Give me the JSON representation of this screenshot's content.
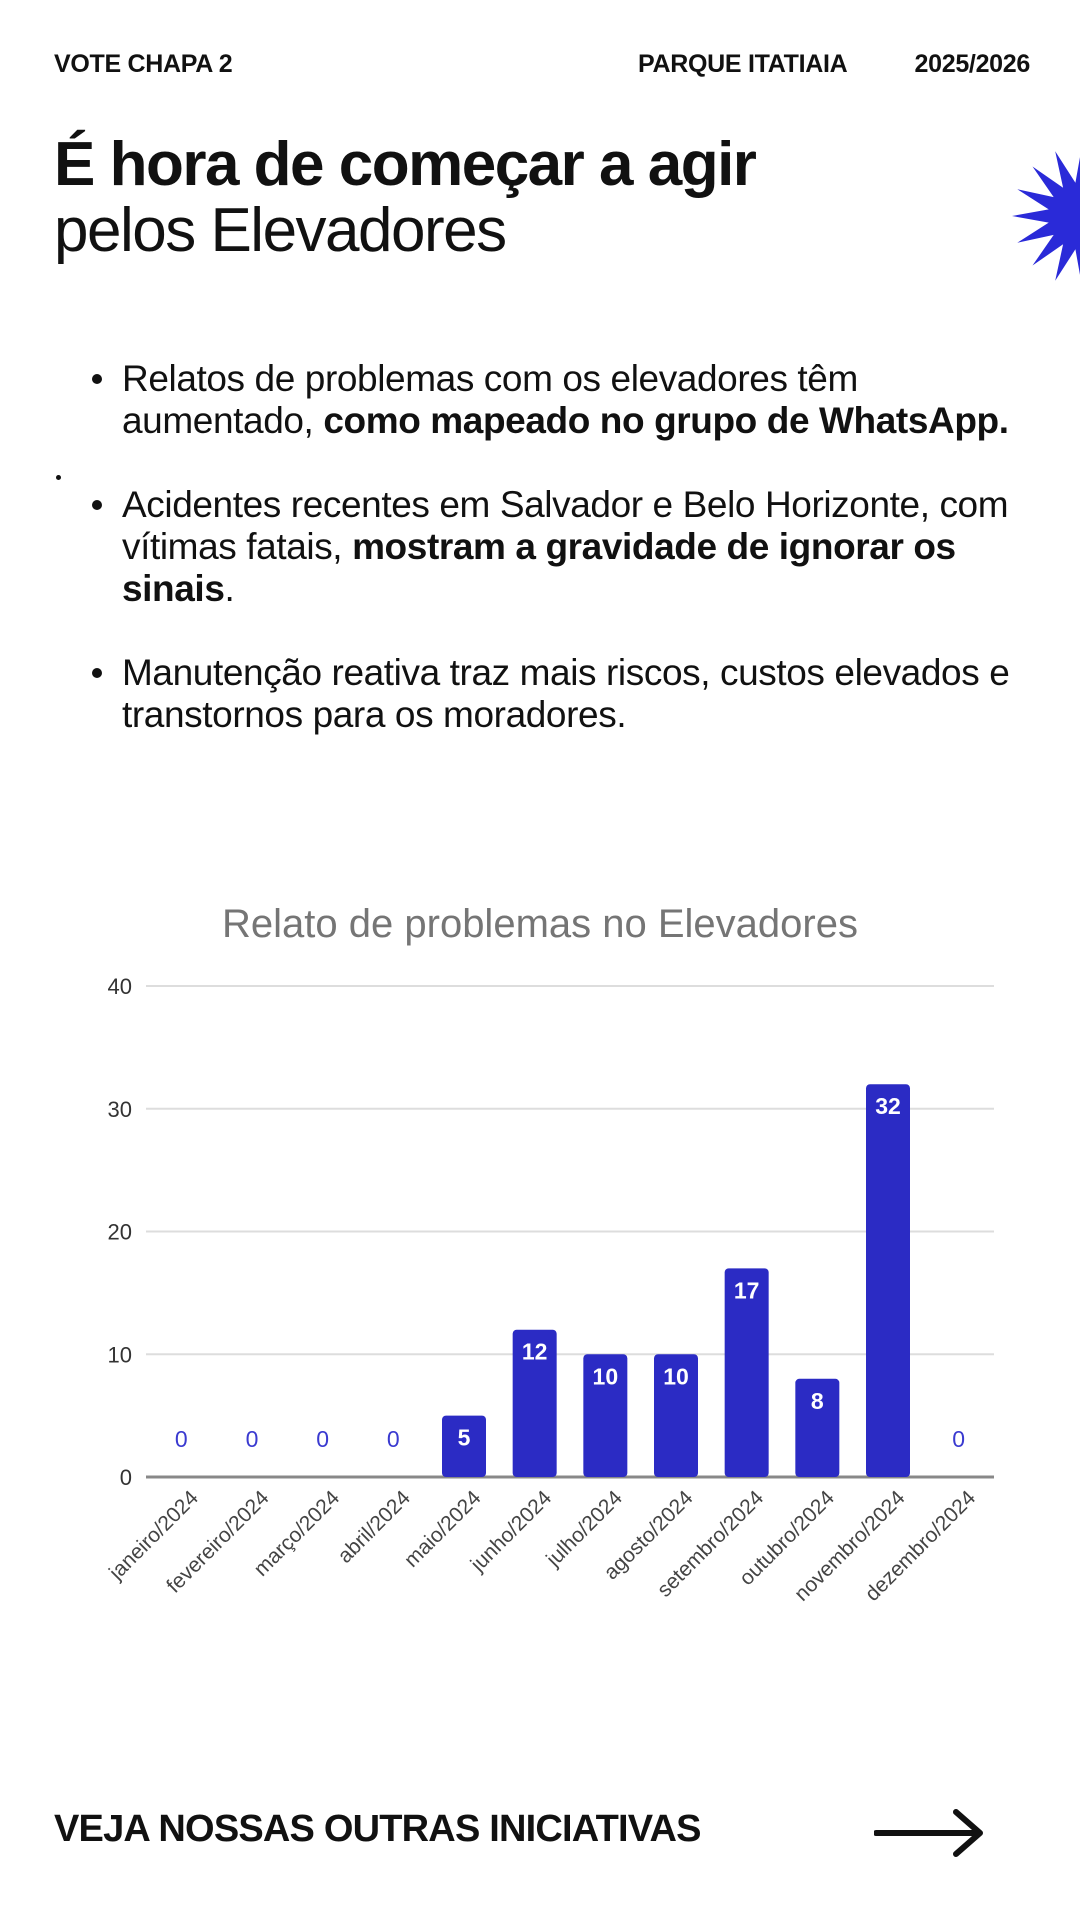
{
  "header": {
    "left": "VOTE CHAPA 2",
    "middle": "PARQUE ITATIAIA",
    "right": "2025/2026"
  },
  "headline": {
    "line1": "É hora de começar a agir",
    "line2": "pelos Elevadores"
  },
  "bullets": [
    {
      "normal": "Relatos de problemas com os elevadores têm aumentado, ",
      "bold": "como mapeado no grupo de WhatsApp.",
      "tail": ""
    },
    {
      "normal": "Acidentes recentes em Salvador e Belo Horizonte, com vítimas fatais, ",
      "bold": "mostram a gravidade de ignorar os sinais",
      "tail": "."
    },
    {
      "normal": "Manutenção reativa traz mais riscos, custos elevados e transtornos para os moradores.",
      "bold": "",
      "tail": ""
    }
  ],
  "footer": {
    "cta": "VEJA NOSSAS OUTRAS INICIATIVAS"
  },
  "icons": {
    "burst": "starburst-icon",
    "arrow": "arrow-right-icon"
  },
  "colors": {
    "bar": "#2b2bc4",
    "accent": "#2a2ad8",
    "zero_label": "#3a3ad0",
    "grid": "#dddddd",
    "axis": "#888888"
  },
  "chart_data": {
    "type": "bar",
    "title": "Relato de problemas no Elevadores",
    "categories": [
      "janeiro/2024",
      "fevereiro/2024",
      "março/2024",
      "abril/2024",
      "maio/2024",
      "junho/2024",
      "julho/2024",
      "agosto/2024",
      "setembro/2024",
      "outubro/2024",
      "novembro/2024",
      "dezembro/2024"
    ],
    "values": [
      0,
      0,
      0,
      0,
      5,
      12,
      10,
      10,
      17,
      8,
      32,
      0
    ],
    "ylim": [
      0,
      40
    ],
    "yticks": [
      0,
      10,
      20,
      30,
      40
    ],
    "xlabel": "",
    "ylabel": "",
    "grid": true,
    "legend": "none",
    "data_labels": true
  }
}
